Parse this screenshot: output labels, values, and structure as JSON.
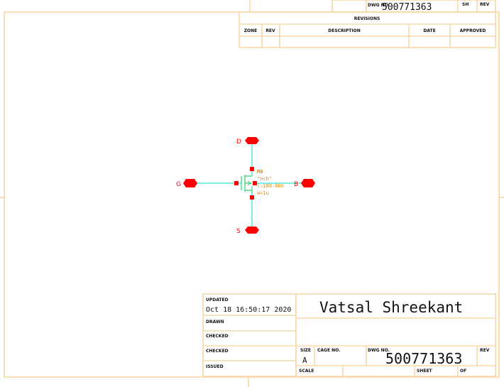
{
  "header": {
    "dwg_no_label": "DWG NO.",
    "dwg_no_value": "500771363",
    "sh_label": "SH",
    "rev_label": "REV"
  },
  "revisions": {
    "title": "REVISIONS",
    "columns": [
      "ZONE",
      "REV",
      "DESCRIPTION",
      "DATE",
      "APPROVED"
    ]
  },
  "schematic": {
    "pins": {
      "drain": "D",
      "gate": "G",
      "source": "S",
      "bulk": "B"
    },
    "instance_name": "M0",
    "model": "\"nch\"",
    "length": "l:180.00n",
    "width": "w=1u"
  },
  "title_block": {
    "updated_label": "UPDATED",
    "updated_value": "Oct 18 16:50:17 2020",
    "drawn_label": "DRAWN",
    "checked_label_1": "CHECKED",
    "checked_label_2": "CHECKED",
    "issued_label": "ISSUED",
    "author": "Vatsal Shreekant",
    "size_label": "SIZE",
    "size_value": "A",
    "cage_label": "CAGE NO.",
    "dwg_no_label": "DWG NO.",
    "dwg_no_value": "500771363",
    "rev_label": "REV",
    "scale_label": "SCALE",
    "sheet_label": "SHEET",
    "of_label": "OF"
  },
  "colors": {
    "frame": "#f7d9a9",
    "wire": "#55e8dd",
    "pin": "#ff0000",
    "property": "#e88a00"
  }
}
